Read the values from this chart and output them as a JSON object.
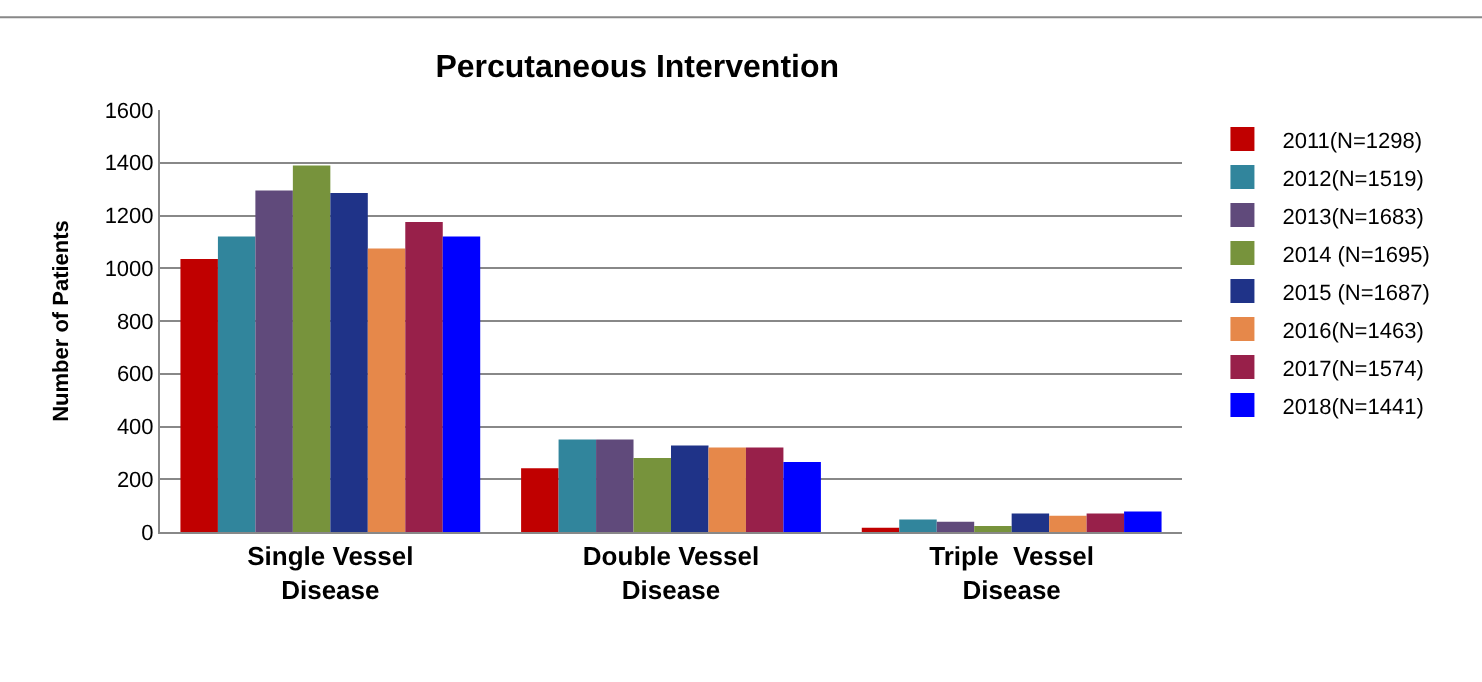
{
  "chart_data": {
    "type": "bar",
    "title": "Percutaneous Intervention",
    "ylabel": "Number of Patients",
    "categories": [
      "Single Vessel Disease",
      "Double Vessel Disease",
      "Triple  Vessel Disease"
    ],
    "series": [
      {
        "name": "2011(N=1298)",
        "color": "#c00000",
        "values": [
          1035,
          242,
          16
        ]
      },
      {
        "name": "2012(N=1519)",
        "color": "#31859c",
        "values": [
          1120,
          351,
          47
        ]
      },
      {
        "name": "2013(N=1683)",
        "color": "#604a7b",
        "values": [
          1295,
          351,
          39
        ]
      },
      {
        "name": "2014 (N=1695)",
        "color": "#77933c",
        "values": [
          1390,
          281,
          23
        ]
      },
      {
        "name": "2015 (N=1687)",
        "color": "#1f3388",
        "values": [
          1285,
          328,
          70
        ]
      },
      {
        "name": "2016(N=1463)",
        "color": "#e6884a",
        "values": [
          1075,
          320,
          62
        ]
      },
      {
        "name": "2017(N=1574)",
        "color": "#98204a",
        "values": [
          1175,
          320,
          70
        ]
      },
      {
        "name": "2018(N=1441)",
        "color": "#0000ff",
        "values": [
          1120,
          265,
          78
        ]
      }
    ],
    "ylim": [
      0,
      1600
    ],
    "yticks": [
      0,
      200,
      400,
      600,
      800,
      1000,
      1200,
      1400,
      1600
    ],
    "grid": "y",
    "legend": "right"
  }
}
